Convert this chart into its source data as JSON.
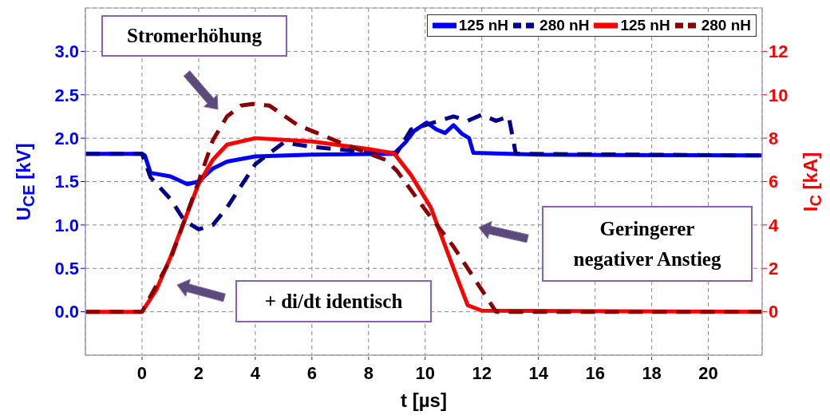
{
  "chart_data": {
    "type": "line",
    "xlabel": "t [µs]",
    "ylabel": "U$_{CE}$ [kV]",
    "y2label": "I$_{C}$ [kA]",
    "xlim": [
      -2,
      21.9
    ],
    "xticks": [
      0,
      2,
      4,
      6,
      8,
      10,
      12,
      14,
      16,
      18,
      20
    ],
    "ylim": [
      -0.5,
      3.5
    ],
    "yticks": [
      {
        "value": 0,
        "label": "0.0"
      },
      {
        "value": 0.5,
        "label": "0.5"
      },
      {
        "value": 1,
        "label": "1.0"
      },
      {
        "value": 1.5,
        "label": "1.5"
      },
      {
        "value": 2,
        "label": "2.0"
      },
      {
        "value": 2.5,
        "label": "2.5"
      },
      {
        "value": 3,
        "label": "3.0"
      }
    ],
    "y2lim": [
      -2,
      14
    ],
    "y2ticks": [
      0,
      2,
      4,
      6,
      8,
      10,
      12
    ],
    "grid": true,
    "legend": "top right",
    "marker": "none",
    "series": [
      {
        "name": "125 nH",
        "color": "#0000ff",
        "line_style": "solid",
        "x": [
          -2,
          0,
          0.1,
          0.3,
          1,
          1.6,
          2,
          2.5,
          3,
          4,
          6,
          8.9,
          9.3,
          9.6,
          10.05,
          10.4,
          10.7,
          11,
          11.3,
          11.55,
          11.7,
          14,
          21.9
        ],
        "values": [
          1.82,
          1.82,
          1.8,
          1.6,
          1.56,
          1.47,
          1.5,
          1.65,
          1.73,
          1.79,
          1.81,
          1.82,
          1.95,
          2.08,
          2.18,
          2.1,
          2.06,
          2.15,
          2.05,
          2.0,
          1.83,
          1.81,
          1.8
        ]
      },
      {
        "name": "280 nH",
        "color": "#00008b",
        "line_style": "dashed",
        "x": [
          -2,
          0,
          0.3,
          1,
          1.5,
          2,
          2.5,
          3,
          3.5,
          4,
          5,
          6,
          8,
          9,
          9.5,
          10,
          10.5,
          11,
          11.5,
          12,
          12.5,
          12.95,
          13.2,
          21.9
        ],
        "values": [
          1.82,
          1.82,
          1.55,
          1.3,
          1.05,
          0.95,
          1.0,
          1.2,
          1.45,
          1.7,
          1.95,
          1.9,
          1.84,
          1.83,
          2.1,
          2.15,
          2.2,
          2.25,
          2.2,
          2.27,
          2.2,
          2.25,
          1.82,
          1.8
        ]
      },
      {
        "name": "125 nH",
        "color": "#ff0000",
        "line_style": "solid",
        "axis": "y2",
        "x": [
          -2,
          0,
          0.5,
          1,
          1.5,
          2,
          2.5,
          3,
          4,
          6,
          8,
          8.9,
          9.5,
          10.2,
          11,
          11.5,
          12,
          21.9
        ],
        "values": [
          0,
          0,
          1.0,
          2.5,
          4.2,
          5.9,
          7.0,
          7.7,
          8.0,
          7.85,
          7.5,
          7.3,
          6.3,
          4.8,
          2.0,
          0.3,
          0.05,
          0
        ]
      },
      {
        "name": "280 nH",
        "color": "#8b0000",
        "line_style": "dashed",
        "axis": "y2",
        "x": [
          -2,
          0,
          1,
          2,
          2.5,
          3,
          3.5,
          3.9,
          4.5,
          5.5,
          7,
          8,
          8.6,
          9,
          10,
          11,
          12,
          12.5,
          21.9
        ],
        "values": [
          0,
          0,
          2.4,
          6.0,
          7.9,
          9.0,
          9.5,
          9.58,
          9.5,
          8.6,
          7.8,
          7.3,
          7.0,
          6.5,
          4.7,
          3.0,
          1.0,
          0,
          0
        ]
      }
    ],
    "annotations": [
      "Stromerhöhung",
      "+ di/dt identisch",
      "Geringerer\nnegativer Anstieg"
    ]
  }
}
